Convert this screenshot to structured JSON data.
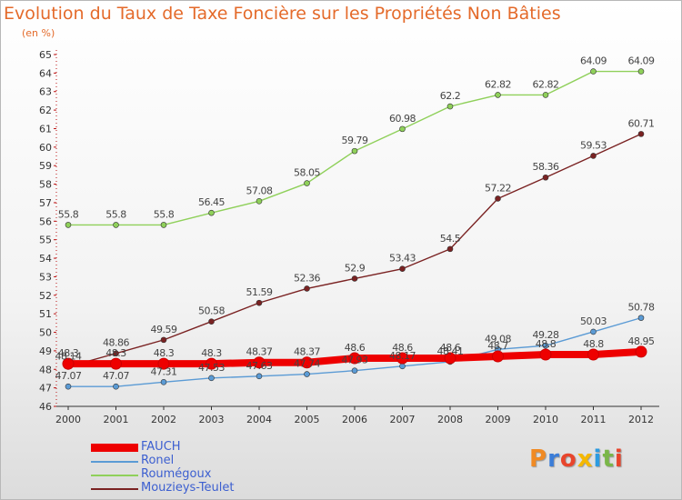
{
  "title": "Evolution du Taux de Taxe Foncière sur les Propriétés Non Bâties",
  "subtitle": "(en %)",
  "logo_text": "Proxiti",
  "chart_data": {
    "type": "line",
    "title": "Evolution du Taux de Taxe Foncière sur les Propriétés Non Bâties",
    "ylabel": "(en %)",
    "xlabel": "",
    "x": [
      "2000",
      "2001",
      "2002",
      "2003",
      "2004",
      "2005",
      "2006",
      "2007",
      "2008",
      "2009",
      "2010",
      "2011",
      "2012"
    ],
    "ylim": [
      46,
      65
    ],
    "yticks": [
      "46",
      "47",
      "48",
      "49",
      "50",
      "51",
      "52",
      "53",
      "54",
      "55",
      "56",
      "57",
      "58",
      "59",
      "60",
      "61",
      "62",
      "63",
      "64",
      "65"
    ],
    "grid": false,
    "legend_position": "bottom-left",
    "series": [
      {
        "name": "FAUCH",
        "color": "#ee0000",
        "values": [
          48.3,
          48.3,
          48.3,
          48.3,
          48.37,
          48.37,
          48.6,
          48.6,
          48.6,
          48.7,
          48.8,
          48.8,
          48.95
        ],
        "labels": [
          "48.3",
          "48.3",
          "48.3",
          "48.3",
          "48.37",
          "48.37",
          "48.6",
          "48.6",
          "48.6",
          "48.7",
          "48.8",
          "48.8",
          "48.95"
        ]
      },
      {
        "name": "Ronel",
        "color": "#5b9bd5",
        "values": [
          47.07,
          47.07,
          47.31,
          47.53,
          47.63,
          47.74,
          47.93,
          48.17,
          48.41,
          49.08,
          49.28,
          50.03,
          50.78
        ],
        "labels": [
          "47.07",
          "47.07",
          "47.31",
          "47.53",
          "47.63",
          "47.74",
          "47.93",
          "48.17",
          "48.41",
          "49.08",
          "49.28",
          "50.03",
          "50.78"
        ]
      },
      {
        "name": "Roumégoux",
        "color": "#8fd05a",
        "values": [
          55.8,
          55.8,
          55.8,
          56.45,
          57.08,
          58.05,
          59.79,
          60.98,
          62.2,
          62.82,
          62.82,
          64.09,
          64.09
        ],
        "labels": [
          "55.8",
          "55.8",
          "55.8",
          "56.45",
          "57.08",
          "58.05",
          "59.79",
          "60.98",
          "62.2",
          "62.82",
          "62.82",
          "64.09",
          "64.09"
        ]
      },
      {
        "name": "Mouzieys-Teulet",
        "color": "#7a2222",
        "values": [
          48.14,
          48.86,
          49.59,
          50.58,
          51.59,
          52.36,
          52.9,
          53.43,
          54.5,
          57.22,
          58.36,
          59.53,
          60.71
        ],
        "labels": [
          "48.14",
          "48.86",
          "49.59",
          "50.58",
          "51.59",
          "52.36",
          "52.9",
          "53.43",
          "54.5",
          "57.22",
          "58.36",
          "59.53",
          "60.71"
        ]
      }
    ]
  }
}
